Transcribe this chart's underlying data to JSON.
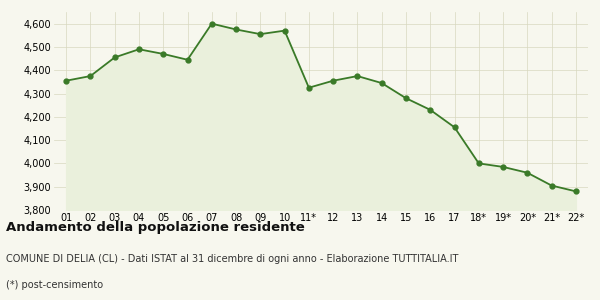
{
  "x_labels": [
    "01",
    "02",
    "03",
    "04",
    "05",
    "06",
    "07",
    "08",
    "09",
    "10",
    "11*",
    "12",
    "13",
    "14",
    "15",
    "16",
    "17",
    "18*",
    "19*",
    "20*",
    "21*",
    "22*"
  ],
  "y_values": [
    4355,
    4375,
    4455,
    4490,
    4470,
    4445,
    4600,
    4575,
    4555,
    4570,
    4325,
    4355,
    4375,
    4345,
    4280,
    4230,
    4155,
    4000,
    3985,
    3960,
    3905,
    3880
  ],
  "line_color": "#3a7a28",
  "fill_color": "#eaf0dc",
  "marker_color": "#3a7a28",
  "bg_color": "#f7f7ee",
  "grid_color": "#d8d8c0",
  "ylim_min": 3800,
  "ylim_max": 4650,
  "yticks": [
    3800,
    3900,
    4000,
    4100,
    4200,
    4300,
    4400,
    4500,
    4600
  ],
  "title": "Andamento della popolazione residente",
  "subtitle": "COMUNE DI DELIA (CL) - Dati ISTAT al 31 dicembre di ogni anno - Elaborazione TUTTITALIA.IT",
  "footnote": "(*) post-censimento",
  "title_fontsize": 9.5,
  "subtitle_fontsize": 7.0,
  "footnote_fontsize": 7.0,
  "tick_fontsize": 7.0,
  "marker_size": 3.5,
  "linewidth": 1.3
}
